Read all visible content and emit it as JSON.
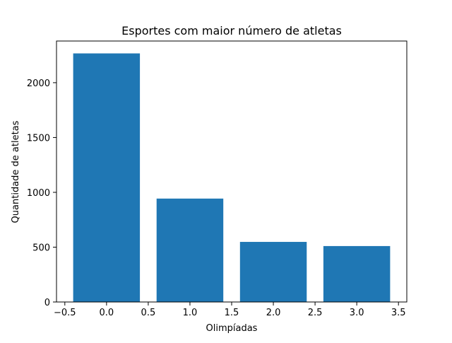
{
  "chart_data": {
    "type": "bar",
    "title": "Esportes com maior número de atletas",
    "xlabel": "Olimpíadas",
    "ylabel": "Quantidade de atletas",
    "x": [
      0,
      1,
      2,
      3
    ],
    "values": [
      2267,
      943,
      548,
      510
    ],
    "bar_width": 0.8,
    "xlim": [
      -0.6,
      3.6
    ],
    "ylim": [
      0,
      2380
    ],
    "xticks": [
      -0.5,
      0.0,
      0.5,
      1.0,
      1.5,
      2.0,
      2.5,
      3.0,
      3.5
    ],
    "xtick_labels": [
      "−0.5",
      "0.0",
      "0.5",
      "1.0",
      "1.5",
      "2.0",
      "2.5",
      "3.0",
      "3.5"
    ],
    "yticks": [
      0,
      500,
      1000,
      1500,
      2000
    ],
    "ytick_labels": [
      "0",
      "500",
      "1000",
      "1500",
      "2000"
    ],
    "bar_color": "#1f77b4",
    "grid": false,
    "legend": "none"
  }
}
